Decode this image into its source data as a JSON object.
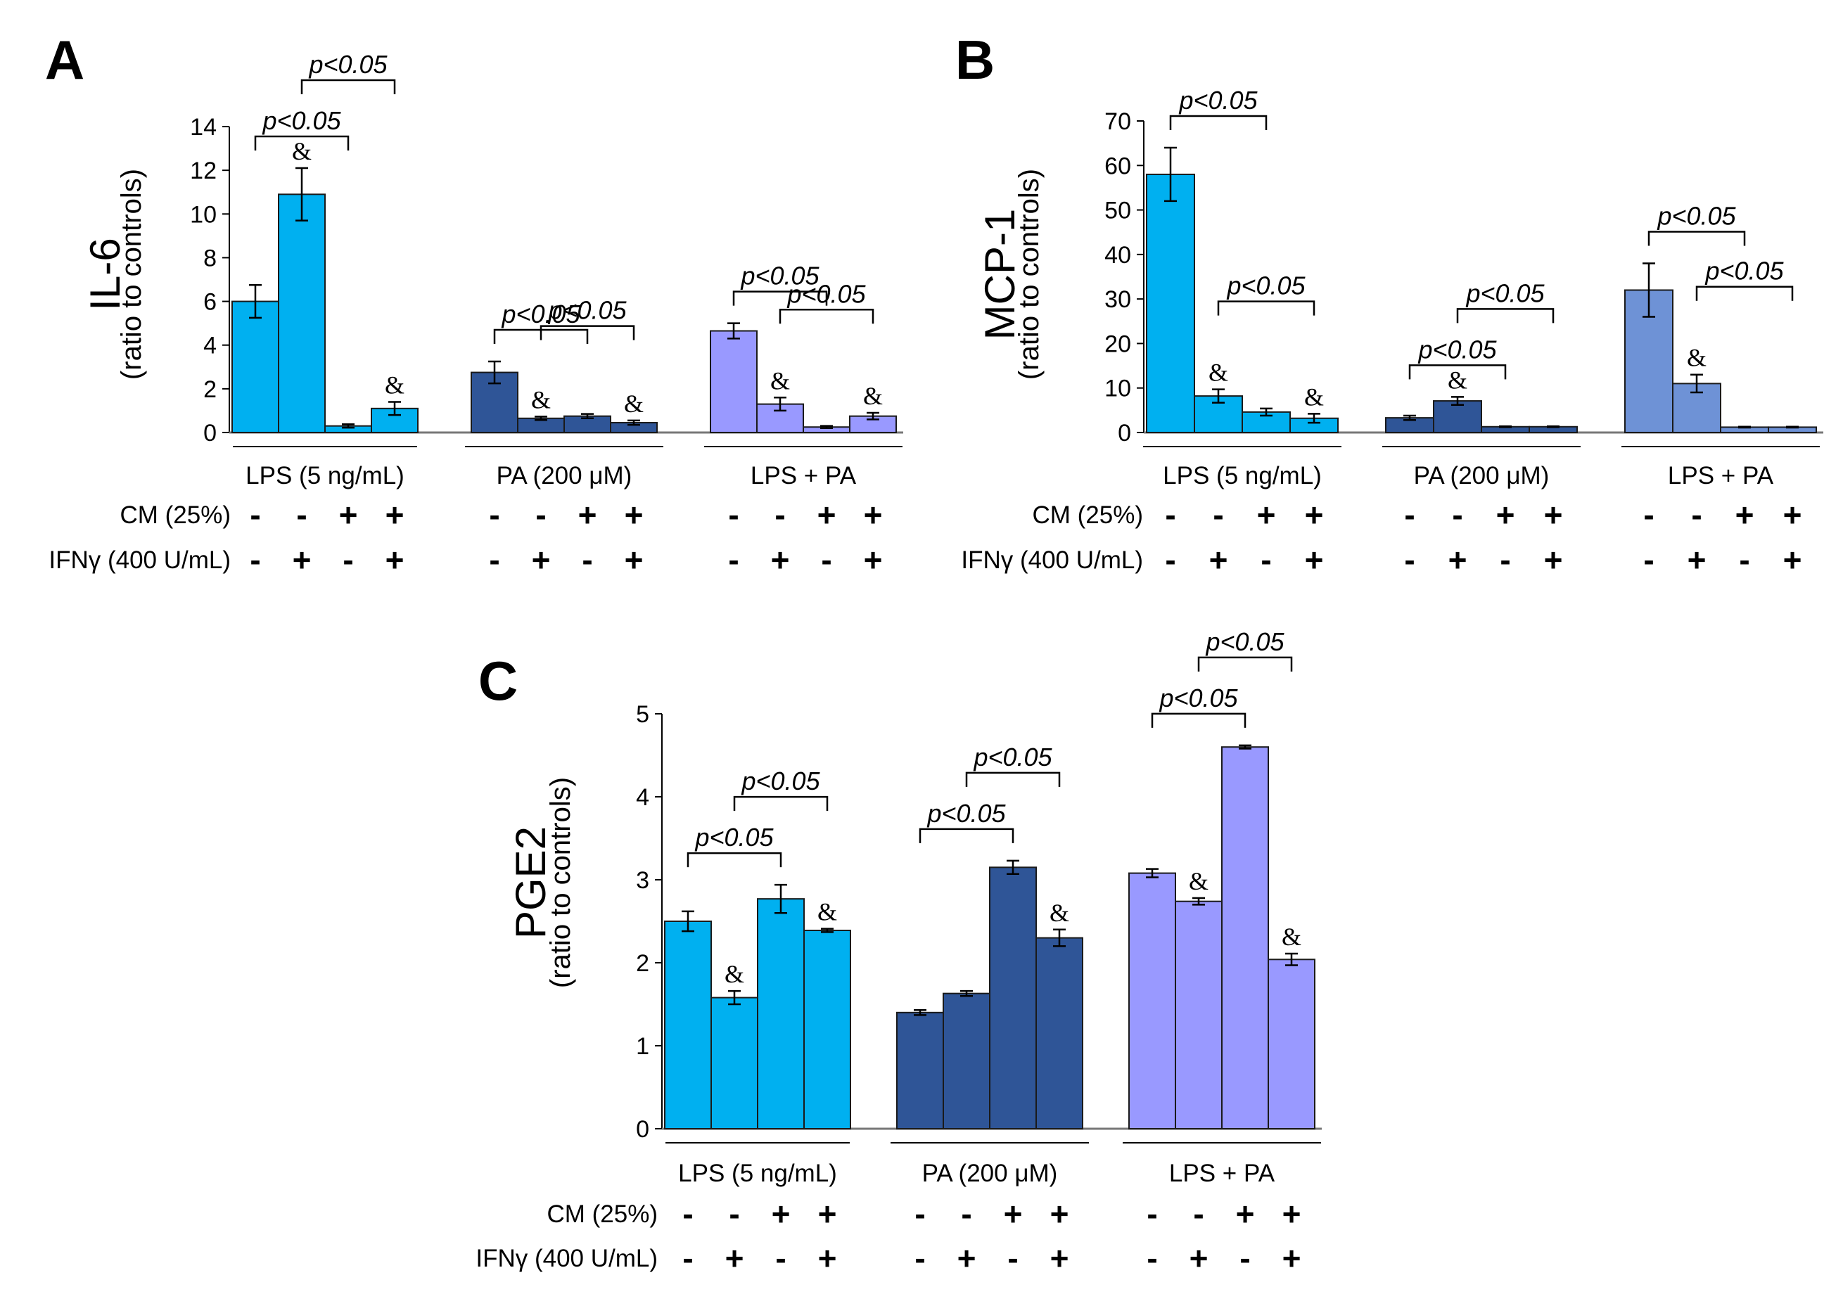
{
  "chart_data": [
    {
      "type": "bar",
      "letter": "A",
      "ylabel": "IL-6",
      "ylabel_sub": "(ratio to controls)",
      "ylim": [
        0,
        14
      ],
      "yticks": [
        "0",
        "2",
        "4",
        "6",
        "8",
        "10",
        "12",
        "14"
      ],
      "groups": [
        {
          "label": "LPS (5 ng/mL)",
          "color": "#00b0f0",
          "values": [
            6.0,
            10.9,
            0.3,
            1.1
          ],
          "errors": [
            0.75,
            1.2,
            0.08,
            0.3
          ],
          "amp": [
            "",
            "&",
            "",
            "&"
          ],
          "sig": [
            [
              0,
              2,
              "p<0.05"
            ],
            [
              1,
              3,
              "p<0.05"
            ]
          ]
        },
        {
          "label": "PA (200 μM)",
          "color": "#2f5597",
          "values": [
            2.75,
            0.65,
            0.75,
            0.45
          ],
          "errors": [
            0.5,
            0.08,
            0.1,
            0.1
          ],
          "amp": [
            "",
            "&",
            "",
            "&"
          ],
          "sig": [
            [
              0,
              2,
              "p<0.05"
            ],
            [
              1,
              3,
              "p<0.05"
            ]
          ]
        },
        {
          "label": "LPS + PA",
          "color": "#9999ff",
          "values": [
            4.65,
            1.3,
            0.25,
            0.75
          ],
          "errors": [
            0.35,
            0.3,
            0.05,
            0.15
          ],
          "amp": [
            "",
            "&",
            "",
            "&"
          ],
          "sig": [
            [
              0,
              2,
              "p<0.05"
            ],
            [
              1,
              3,
              "p<0.05"
            ]
          ]
        }
      ],
      "row_labels": [
        "CM (25%)",
        "IFNγ (400 U/mL)"
      ],
      "signs": [
        [
          "-",
          "-",
          "+",
          "+"
        ],
        [
          "-",
          "+",
          "-",
          "+"
        ]
      ]
    },
    {
      "type": "bar",
      "letter": "B",
      "ylabel": "MCP-1",
      "ylabel_sub": "(ratio to controls)",
      "ylim": [
        0,
        70
      ],
      "yticks": [
        "0",
        "10",
        "20",
        "30",
        "40",
        "50",
        "60",
        "70"
      ],
      "groups": [
        {
          "label": "LPS (5 ng/mL)",
          "color": "#00b0f0",
          "values": [
            58,
            8.2,
            4.6,
            3.2
          ],
          "errors": [
            6,
            1.5,
            0.8,
            1.0
          ],
          "amp": [
            "",
            "&",
            "",
            "&"
          ],
          "sig": [
            [
              0,
              2,
              "p<0.05"
            ],
            [
              1,
              3,
              "p<0.05"
            ]
          ]
        },
        {
          "label": "PA (200 μM)",
          "color": "#2f5597",
          "values": [
            3.3,
            7.1,
            1.3,
            1.3
          ],
          "errors": [
            0.5,
            0.9,
            0.1,
            0.1
          ],
          "amp": [
            "",
            "&",
            "",
            ""
          ],
          "sig": [
            [
              0,
              2,
              "p<0.05"
            ],
            [
              1,
              3,
              "p<0.05"
            ]
          ]
        },
        {
          "label": "LPS + PA",
          "color": "#6e92d6",
          "values": [
            32,
            11,
            1.2,
            1.2
          ],
          "errors": [
            6,
            2,
            0.1,
            0.1
          ],
          "amp": [
            "",
            "&",
            "",
            ""
          ],
          "sig": [
            [
              0,
              2,
              "p<0.05"
            ],
            [
              1,
              3,
              "p<0.05"
            ]
          ]
        }
      ],
      "row_labels": [
        "CM (25%)",
        "IFNγ (400 U/mL)"
      ],
      "signs": [
        [
          "-",
          "-",
          "+",
          "+"
        ],
        [
          "-",
          "+",
          "-",
          "+"
        ]
      ]
    },
    {
      "type": "bar",
      "letter": "C",
      "ylabel": "PGE2",
      "ylabel_sub": "(ratio to controls)",
      "ylim": [
        0,
        5
      ],
      "yticks": [
        "0",
        "1",
        "2",
        "3",
        "4",
        "5"
      ],
      "groups": [
        {
          "label": "LPS (5 ng/mL)",
          "color": "#00b0f0",
          "values": [
            2.5,
            1.58,
            2.77,
            2.39
          ],
          "errors": [
            0.12,
            0.08,
            0.17,
            0.02
          ],
          "amp": [
            "",
            "&",
            "",
            "&"
          ],
          "sig": [
            [
              0,
              2,
              "p<0.05"
            ],
            [
              1,
              3,
              "p<0.05"
            ]
          ]
        },
        {
          "label": "PA (200 μM)",
          "color": "#2f5597",
          "values": [
            1.4,
            1.63,
            3.15,
            2.3
          ],
          "errors": [
            0.03,
            0.03,
            0.08,
            0.1
          ],
          "amp": [
            "",
            "",
            "",
            "&"
          ],
          "sig": [
            [
              0,
              2,
              "p<0.05"
            ],
            [
              1,
              3,
              "p<0.05"
            ]
          ]
        },
        {
          "label": "LPS + PA",
          "color": "#9999ff",
          "values": [
            3.08,
            2.74,
            4.6,
            2.04
          ],
          "errors": [
            0.05,
            0.04,
            0.02,
            0.07
          ],
          "amp": [
            "",
            "&",
            "",
            "&"
          ],
          "sig": [
            [
              0,
              2,
              "p<0.05"
            ],
            [
              1,
              3,
              "p<0.05"
            ]
          ]
        }
      ],
      "row_labels": [
        "CM (25%)",
        "IFNγ (400 U/mL)"
      ],
      "signs": [
        [
          "-",
          "-",
          "+",
          "+"
        ],
        [
          "-",
          "+",
          "-",
          "+"
        ]
      ]
    }
  ]
}
